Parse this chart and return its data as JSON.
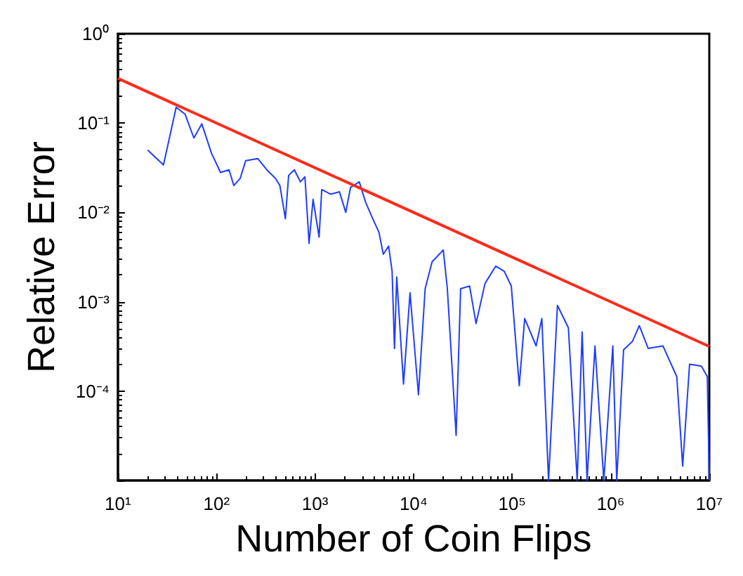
{
  "chart_data": {
    "type": "line",
    "xlabel": "Number of Coin Flips",
    "ylabel": "Relative Error",
    "log": "xy",
    "grid": false,
    "xlim": [
      10,
      10000000
    ],
    "ylim": [
      1e-05,
      1
    ],
    "xticks": [
      {
        "value": 10,
        "label": "10¹"
      },
      {
        "value": 100,
        "label": "10²"
      },
      {
        "value": 1000,
        "label": "10³"
      },
      {
        "value": 10000,
        "label": "10⁴"
      },
      {
        "value": 100000,
        "label": "10⁵"
      },
      {
        "value": 1000000,
        "label": "10⁶"
      },
      {
        "value": 10000000,
        "label": "10⁷"
      }
    ],
    "yticks": [
      {
        "value": 1e-05,
        "label": null
      },
      {
        "value": 0.0001,
        "label": "10⁻⁴"
      },
      {
        "value": 0.001,
        "label": "10⁻³"
      },
      {
        "value": 0.01,
        "label": "10⁻²"
      },
      {
        "value": 0.1,
        "label": "10⁻¹"
      },
      {
        "value": 1,
        "label": "10⁰"
      }
    ],
    "series": [
      {
        "color": "#1f3dff",
        "x": [
          20,
          29,
          39,
          48,
          59,
          71,
          89,
          110,
          134,
          150,
          174,
          198,
          263,
          324,
          397,
          440,
          500,
          540,
          617,
          710,
          790,
          870,
          955,
          1100,
          1170,
          1440,
          1770,
          2050,
          2290,
          2810,
          3260,
          3780,
          4450,
          4930,
          5580,
          6050,
          6400,
          6740,
          7900,
          9200,
          11200,
          13100,
          15400,
          20000,
          22000,
          27000,
          30000,
          37000,
          43000,
          53000,
          68000,
          83000,
          98000,
          118000,
          134000,
          175000,
          200000,
          234000,
          288000,
          372000,
          457000,
          513000,
          575000,
          692000,
          851000,
          1050000,
          1150000,
          1350000,
          1660000,
          1950000,
          2400000,
          3390000,
          4680000,
          5370000,
          6310000,
          8320000,
          9550000,
          10000000
        ],
        "values": [
          0.05,
          0.034,
          0.15,
          0.126,
          0.068,
          0.098,
          0.046,
          0.028,
          0.03,
          0.02,
          0.024,
          0.038,
          0.04,
          0.03,
          0.024,
          0.02,
          0.0085,
          0.026,
          0.03,
          0.022,
          0.025,
          0.0045,
          0.014,
          0.0053,
          0.018,
          0.016,
          0.017,
          0.01,
          0.019,
          0.022,
          0.013,
          0.0089,
          0.006,
          0.0034,
          0.0042,
          0.0022,
          0.0003,
          0.0019,
          0.00012,
          0.00126,
          9.1e-05,
          0.0014,
          0.0028,
          0.0038,
          0.0014,
          3.2e-05,
          0.0014,
          0.0015,
          0.00057,
          0.0016,
          0.0025,
          0.0022,
          0.0015,
          0.000115,
          0.00065,
          0.00032,
          0.00065,
          1e-05,
          0.00091,
          0.00051,
          1e-05,
          0.00046,
          1e-05,
          0.00032,
          1e-05,
          0.00032,
          1e-05,
          0.00029,
          0.00036,
          0.00054,
          0.0003,
          0.00032,
          0.000145,
          1.45e-05,
          0.0002,
          0.00019,
          0.000145,
          1e-05
        ]
      },
      {
        "color": "#ff2a1a",
        "x": [
          10,
          10000000
        ],
        "values": [
          0.316,
          0.000316
        ]
      }
    ]
  }
}
